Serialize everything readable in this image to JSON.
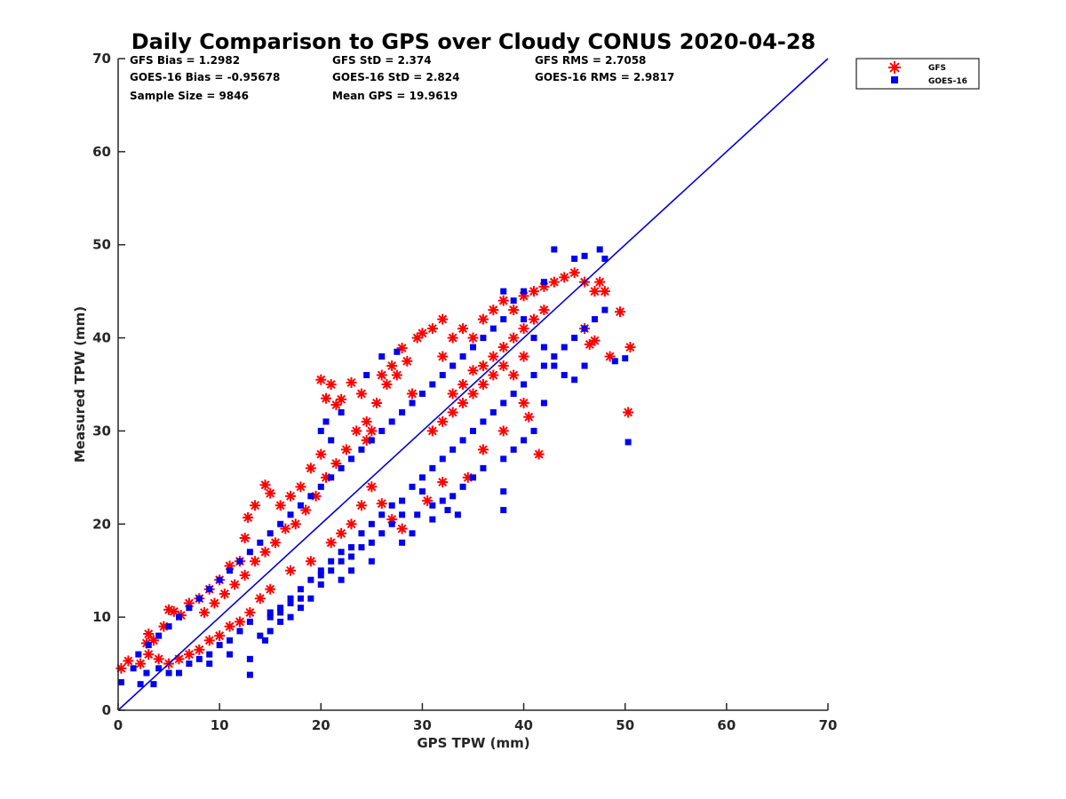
{
  "chart_data": {
    "type": "scatter",
    "title": "Daily Comparison to GPS over Cloudy CONUS 2020-04-28",
    "xlabel": "GPS TPW (mm)",
    "ylabel": "Measured TPW (mm)",
    "xlim": [
      0,
      70
    ],
    "ylim": [
      0,
      70
    ],
    "xticks": [
      "0",
      "10",
      "20",
      "30",
      "40",
      "50",
      "60",
      "70"
    ],
    "yticks": [
      "0",
      "10",
      "20",
      "30",
      "40",
      "50",
      "60",
      "70"
    ],
    "grid": false,
    "legend_position": "top-right outside",
    "annotations": [
      [
        "GFS Bias = 1.2982",
        "GFS StD = 2.374",
        "GFS RMS = 2.7058"
      ],
      [
        "GOES-16 Bias = -0.95678",
        "GOES-16 StD = 2.824",
        "GOES-16 RMS = 2.9817"
      ],
      [
        "Sample Size = 9846",
        "Mean GPS = 19.9619"
      ]
    ],
    "reference_line": {
      "x": [
        0,
        70
      ],
      "y": [
        0,
        70
      ],
      "color": "#0000dd"
    },
    "series": [
      {
        "name": "GFS",
        "marker": "asterisk",
        "color": "#ff0000",
        "points": [
          [
            0.3,
            4.5
          ],
          [
            1,
            5.3
          ],
          [
            2.2,
            5
          ],
          [
            2.8,
            7.2
          ],
          [
            3,
            8.2
          ],
          [
            3.5,
            7.5
          ],
          [
            4.5,
            9
          ],
          [
            5,
            10.8
          ],
          [
            5.5,
            10.6
          ],
          [
            6.2,
            10.2
          ],
          [
            7,
            11.5
          ],
          [
            8,
            12
          ],
          [
            9,
            13
          ],
          [
            10,
            14
          ],
          [
            11,
            15.5
          ],
          [
            12,
            16
          ],
          [
            12.5,
            18.5
          ],
          [
            12.8,
            20.7
          ],
          [
            13.5,
            22
          ],
          [
            14.5,
            24.2
          ],
          [
            15,
            23.3
          ],
          [
            16,
            22
          ],
          [
            17,
            23
          ],
          [
            18,
            24
          ],
          [
            19,
            26
          ],
          [
            20,
            27.5
          ],
          [
            20,
            35.5
          ],
          [
            20.5,
            33.5
          ],
          [
            21,
            35
          ],
          [
            21.5,
            32.8
          ],
          [
            22,
            33.4
          ],
          [
            23,
            35.2
          ],
          [
            24,
            34
          ],
          [
            24.5,
            29
          ],
          [
            25,
            30
          ],
          [
            26,
            36
          ],
          [
            27,
            37
          ],
          [
            28,
            38.9
          ],
          [
            28.5,
            37.5
          ],
          [
            29,
            34
          ],
          [
            29.5,
            40
          ],
          [
            30,
            40.5
          ],
          [
            31,
            41
          ],
          [
            32,
            42
          ],
          [
            32,
            38
          ],
          [
            33,
            40
          ],
          [
            34,
            41
          ],
          [
            35,
            40
          ],
          [
            36,
            42
          ],
          [
            37,
            43
          ],
          [
            38,
            44
          ],
          [
            39,
            43
          ],
          [
            40,
            44.5
          ],
          [
            41,
            45
          ],
          [
            42,
            45.5
          ],
          [
            43,
            46
          ],
          [
            44,
            46.5
          ],
          [
            45,
            47
          ],
          [
            46,
            46
          ],
          [
            47,
            45
          ],
          [
            47.5,
            46
          ],
          [
            48,
            45
          ],
          [
            46,
            41
          ],
          [
            46.5,
            39.3
          ],
          [
            47,
            39.7
          ],
          [
            48.5,
            38
          ],
          [
            49.5,
            42.8
          ],
          [
            50.5,
            39
          ],
          [
            50.3,
            32
          ],
          [
            41.5,
            27.5
          ],
          [
            40.5,
            31.5
          ],
          [
            40,
            33
          ],
          [
            38,
            30
          ],
          [
            36,
            28
          ],
          [
            34.5,
            25
          ],
          [
            32,
            24.5
          ],
          [
            30.5,
            22.5
          ],
          [
            28,
            19.5
          ],
          [
            27,
            20.5
          ],
          [
            26,
            22.2
          ],
          [
            25,
            24
          ],
          [
            24,
            22
          ],
          [
            23,
            20
          ],
          [
            22,
            19
          ],
          [
            21,
            18
          ],
          [
            19,
            16
          ],
          [
            17,
            15
          ],
          [
            15,
            13
          ],
          [
            14,
            12
          ],
          [
            13,
            10.5
          ],
          [
            12,
            9.5
          ],
          [
            11,
            9
          ],
          [
            10,
            8
          ],
          [
            9,
            7.5
          ],
          [
            8,
            6.5
          ],
          [
            7,
            6
          ],
          [
            6,
            5.5
          ],
          [
            5,
            5
          ],
          [
            4,
            5.5
          ],
          [
            3,
            6
          ],
          [
            27.5,
            36
          ],
          [
            26.5,
            35
          ],
          [
            25.5,
            33
          ],
          [
            24.5,
            31
          ],
          [
            23.5,
            30
          ],
          [
            22.5,
            28
          ],
          [
            21.5,
            26.5
          ],
          [
            20.5,
            25
          ],
          [
            19.5,
            23
          ],
          [
            18.5,
            21.5
          ],
          [
            17.5,
            20
          ],
          [
            16.5,
            19.5
          ],
          [
            15.5,
            18
          ],
          [
            14.5,
            17
          ],
          [
            13.5,
            16
          ],
          [
            12.5,
            14.5
          ],
          [
            11.5,
            13.5
          ],
          [
            10.5,
            12.5
          ],
          [
            9.5,
            11.5
          ],
          [
            8.5,
            10.5
          ],
          [
            33,
            34
          ],
          [
            34,
            35
          ],
          [
            35,
            36.5
          ],
          [
            36,
            37
          ],
          [
            37,
            38
          ],
          [
            38,
            39
          ],
          [
            39,
            40
          ],
          [
            40,
            41
          ],
          [
            41,
            42
          ],
          [
            42,
            43
          ],
          [
            31,
            30
          ],
          [
            32,
            31
          ],
          [
            33,
            32
          ],
          [
            34,
            33
          ],
          [
            35,
            34
          ],
          [
            36,
            35
          ],
          [
            37,
            36
          ],
          [
            38,
            37
          ],
          [
            39,
            36
          ],
          [
            40,
            38
          ]
        ]
      },
      {
        "name": "GOES-16",
        "marker": "square",
        "color": "#0000ee",
        "points": [
          [
            0.3,
            3
          ],
          [
            1.5,
            4.5
          ],
          [
            2.2,
            2.8
          ],
          [
            2.8,
            4
          ],
          [
            3.5,
            2.8
          ],
          [
            4,
            4.5
          ],
          [
            5,
            4
          ],
          [
            6,
            4
          ],
          [
            7,
            5
          ],
          [
            8,
            5.5
          ],
          [
            9,
            6
          ],
          [
            10,
            7
          ],
          [
            11,
            7.5
          ],
          [
            12,
            8.5
          ],
          [
            13,
            9.5
          ],
          [
            13,
            3.8
          ],
          [
            13,
            5.5
          ],
          [
            14.5,
            7.5
          ],
          [
            15,
            10
          ],
          [
            16,
            11
          ],
          [
            17,
            12
          ],
          [
            18,
            13
          ],
          [
            19,
            14
          ],
          [
            20,
            15
          ],
          [
            21,
            16
          ],
          [
            22,
            17
          ],
          [
            23,
            17.5
          ],
          [
            24,
            19
          ],
          [
            25,
            20
          ],
          [
            26,
            21
          ],
          [
            27,
            22
          ],
          [
            28,
            22.5
          ],
          [
            29,
            24
          ],
          [
            30,
            25
          ],
          [
            31,
            26
          ],
          [
            32,
            27
          ],
          [
            33,
            28
          ],
          [
            34,
            29
          ],
          [
            35,
            30
          ],
          [
            36,
            31
          ],
          [
            37,
            32
          ],
          [
            38,
            33
          ],
          [
            39,
            34
          ],
          [
            40,
            35
          ],
          [
            41,
            36
          ],
          [
            42,
            37
          ],
          [
            43,
            38
          ],
          [
            44,
            39
          ],
          [
            45,
            40
          ],
          [
            46,
            41
          ],
          [
            47,
            42
          ],
          [
            48,
            43
          ],
          [
            49,
            37.5
          ],
          [
            50,
            37.8
          ],
          [
            50.3,
            28.8
          ],
          [
            48,
            48.5
          ],
          [
            47.5,
            49.5
          ],
          [
            46,
            48.8
          ],
          [
            45,
            48.5
          ],
          [
            43,
            49.5
          ],
          [
            42,
            46
          ],
          [
            40,
            45
          ],
          [
            39,
            44
          ],
          [
            38,
            42
          ],
          [
            37,
            41
          ],
          [
            36,
            40
          ],
          [
            35,
            39
          ],
          [
            34,
            38
          ],
          [
            33,
            37
          ],
          [
            32,
            36
          ],
          [
            31,
            35
          ],
          [
            30,
            34
          ],
          [
            29,
            33
          ],
          [
            28,
            32
          ],
          [
            27,
            31
          ],
          [
            26,
            30
          ],
          [
            25,
            29
          ],
          [
            24,
            28
          ],
          [
            23,
            27
          ],
          [
            22,
            26
          ],
          [
            21,
            25
          ],
          [
            20,
            24
          ],
          [
            19,
            23
          ],
          [
            18,
            22
          ],
          [
            17,
            21
          ],
          [
            16,
            20
          ],
          [
            15,
            19
          ],
          [
            14,
            18
          ],
          [
            13,
            17
          ],
          [
            12,
            16
          ],
          [
            11,
            15
          ],
          [
            10,
            14
          ],
          [
            9,
            13
          ],
          [
            8,
            12
          ],
          [
            7,
            11
          ],
          [
            6,
            10
          ],
          [
            5,
            9
          ],
          [
            4,
            8
          ],
          [
            3,
            7
          ],
          [
            2,
            6
          ],
          [
            38,
            21.5
          ],
          [
            38,
            23.5
          ],
          [
            33.5,
            21
          ],
          [
            32.5,
            21.5
          ],
          [
            31,
            20.5
          ],
          [
            30,
            23.5
          ],
          [
            29,
            19
          ],
          [
            28,
            18
          ],
          [
            25,
            16
          ],
          [
            23,
            15
          ],
          [
            22,
            14
          ],
          [
            20,
            13.5
          ],
          [
            19,
            12
          ],
          [
            18,
            11
          ],
          [
            17,
            10
          ],
          [
            16,
            9.5
          ],
          [
            15,
            8.5
          ],
          [
            14,
            8
          ],
          [
            11,
            6
          ],
          [
            9,
            5
          ],
          [
            20,
            30
          ],
          [
            20.5,
            31
          ],
          [
            21,
            29
          ],
          [
            22,
            32
          ],
          [
            24.5,
            36
          ],
          [
            26,
            38
          ],
          [
            27.5,
            38.5
          ],
          [
            38,
            45
          ],
          [
            40,
            42
          ],
          [
            41,
            40
          ],
          [
            42,
            39
          ],
          [
            43,
            37
          ],
          [
            44,
            36
          ],
          [
            45,
            35.5
          ],
          [
            46,
            37
          ],
          [
            42,
            33
          ],
          [
            41,
            30
          ],
          [
            40,
            29
          ],
          [
            39,
            28
          ],
          [
            38,
            27
          ],
          [
            36,
            26
          ],
          [
            35,
            25
          ],
          [
            34,
            24
          ],
          [
            33,
            23
          ],
          [
            32,
            22.5
          ],
          [
            31,
            22
          ],
          [
            29.5,
            21
          ],
          [
            28,
            21
          ],
          [
            27,
            20
          ],
          [
            26,
            19
          ],
          [
            25,
            18
          ],
          [
            24,
            17.5
          ],
          [
            23,
            16.5
          ],
          [
            22,
            16
          ],
          [
            21,
            15
          ],
          [
            20,
            14.5
          ],
          [
            18,
            12
          ],
          [
            17,
            11.5
          ],
          [
            16,
            10.5
          ],
          [
            15,
            10.5
          ]
        ]
      }
    ]
  }
}
